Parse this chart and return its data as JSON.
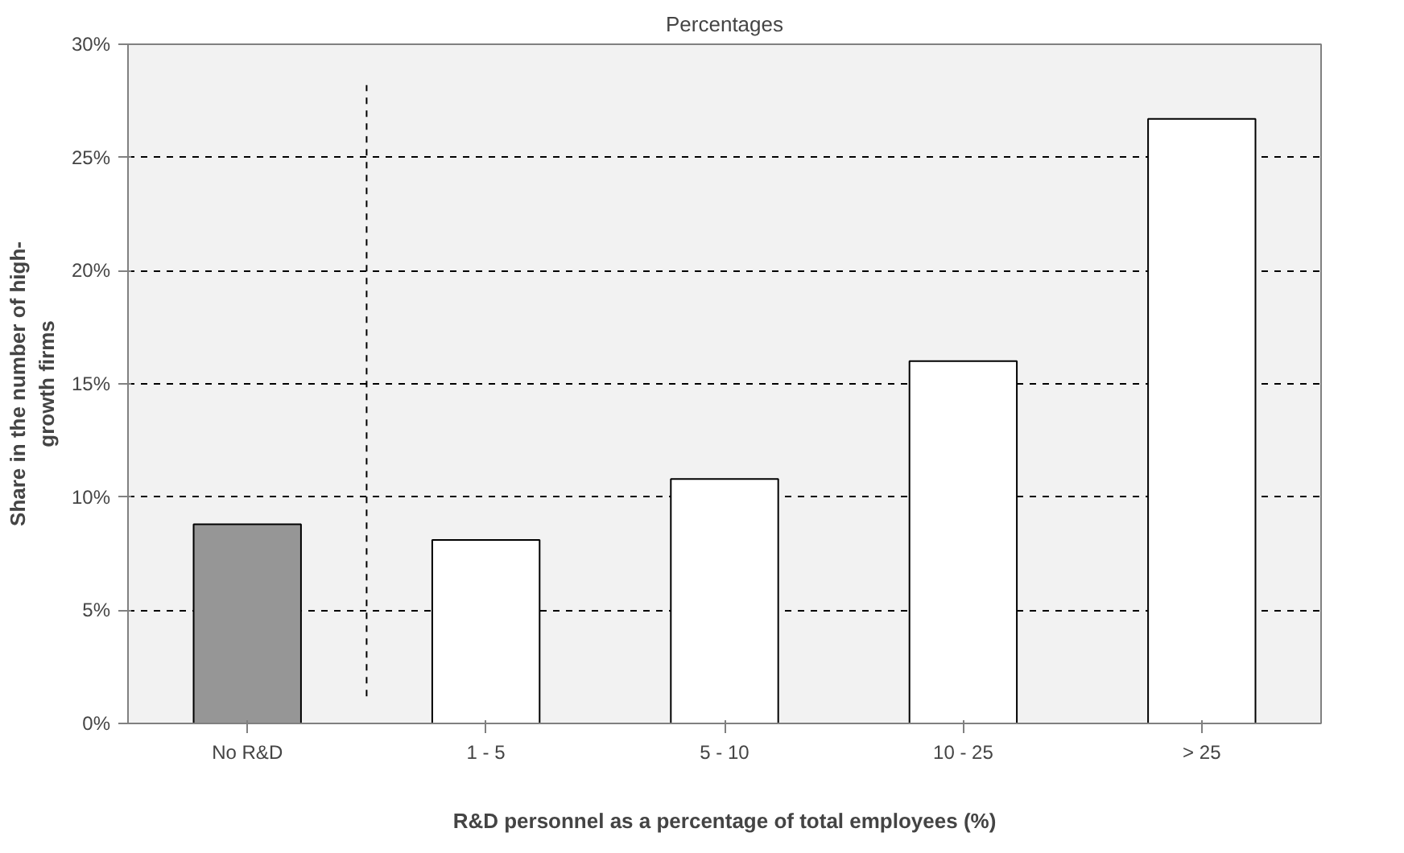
{
  "chart_data": {
    "type": "bar",
    "title": "Percentages",
    "xlabel": "R&D personnel as a percentage of total employees (%)",
    "ylabel": "Share in the number of high-\ngrowth firms",
    "categories": [
      "No R&D",
      "1 - 5",
      "5 - 10",
      "10 - 25",
      "> 25"
    ],
    "values": [
      8.8,
      8.1,
      10.8,
      16.0,
      26.7
    ],
    "colors": [
      "#969696",
      "#ffffff",
      "#ffffff",
      "#ffffff",
      "#ffffff"
    ],
    "ylim": [
      0,
      30
    ],
    "yticks": [
      {
        "value": 0,
        "label": "0%"
      },
      {
        "value": 5,
        "label": "5%"
      },
      {
        "value": 10,
        "label": "10%"
      },
      {
        "value": 15,
        "label": "15%"
      },
      {
        "value": 20,
        "label": "20%"
      },
      {
        "value": 25,
        "label": "25%"
      },
      {
        "value": 30,
        "label": "30%"
      }
    ],
    "grid": "y"
  }
}
